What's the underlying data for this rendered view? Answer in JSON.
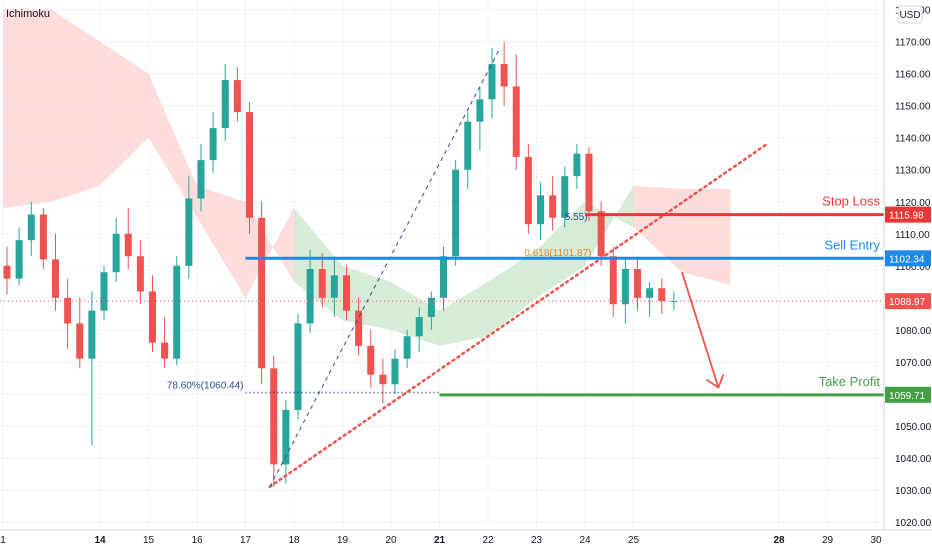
{
  "indicator_label": "Ichimoku",
  "currency": "USD",
  "colors": {
    "bull": "#26a69a",
    "bear": "#ef5350",
    "cloud_bear": "#fbd2d0",
    "cloud_bull": "#c8e6c9",
    "stop_loss": "#e53935",
    "sell_entry": "#1e88e5",
    "take_profit": "#43a047",
    "current_price": "#ef5350",
    "fib_line": "#2e4a8a"
  },
  "levels": [
    {
      "name": "Stop Loss",
      "price": 1115.98,
      "badge": "1115.98",
      "color": "#e53935",
      "x_from": "2020-11-24",
      "x_to": "2020-11-30"
    },
    {
      "name": "Sell Entry",
      "price": 1102.34,
      "badge": "1102.34",
      "color": "#1e88e5",
      "x_from": "2020-11-17",
      "x_to": "2020-11-30"
    },
    {
      "name": "Take Profit",
      "price": 1059.71,
      "badge": "1059.71",
      "color": "#43a047",
      "x_from": "2020-11-21",
      "x_to": "2020-11-30"
    }
  ],
  "current_price": {
    "price": 1088.97,
    "badge": "1088.97"
  },
  "annotations": {
    "fib_786": {
      "text": "78.60%(1060.44)",
      "price": 1060.44
    },
    "fib_618": {
      "text": "0.618(1101.87)",
      "price": 1101.87
    },
    "fib_partial": {
      "text": "5.55)",
      "price": 1115.55
    }
  },
  "chart_data": {
    "type": "candlestick",
    "instrument_currency": "USD",
    "x_axis": {
      "type": "date",
      "ticks": [
        {
          "label": "1",
          "date": "2020-11-12"
        },
        {
          "label": "14",
          "date": "2020-11-14"
        },
        {
          "label": "15",
          "date": "2020-11-15"
        },
        {
          "label": "16",
          "date": "2020-11-16"
        },
        {
          "label": "17",
          "date": "2020-11-17"
        },
        {
          "label": "18",
          "date": "2020-11-18"
        },
        {
          "label": "19",
          "date": "2020-11-19"
        },
        {
          "label": "20",
          "date": "2020-11-20"
        },
        {
          "label": "21",
          "date": "2020-11-21"
        },
        {
          "label": "22",
          "date": "2020-11-22"
        },
        {
          "label": "23",
          "date": "2020-11-23"
        },
        {
          "label": "24",
          "date": "2020-11-24"
        },
        {
          "label": "25",
          "date": "2020-11-25"
        },
        {
          "label": "28",
          "date": "2020-11-28"
        },
        {
          "label": "29",
          "date": "2020-11-29"
        },
        {
          "label": "30",
          "date": "2020-11-30"
        }
      ],
      "bold_ticks": [
        "14",
        "21",
        "28"
      ],
      "range": [
        "2020-11-12",
        "2020-11-30"
      ]
    },
    "y_axis": {
      "ticks": [
        "1020.00",
        "1030.00",
        "1040.00",
        "1050.00",
        "1060.00",
        "1070.00",
        "1080.00",
        "1090.00",
        "1100.00",
        "1110.00",
        "1120.00",
        "1130.00",
        "1140.00",
        "1150.00",
        "1160.00",
        "1170.00",
        "1180.00"
      ],
      "range": [
        1017.5,
        1183
      ]
    },
    "series": [
      {
        "kind": "ohlc",
        "points": [
          [
            "2020-11-12 00:00",
            1100,
            1106,
            1091,
            1096
          ],
          [
            "2020-11-12 06:00",
            1096,
            1112,
            1094,
            1108
          ],
          [
            "2020-11-12 12:00",
            1108,
            1120,
            1103,
            1116
          ],
          [
            "2020-11-12 18:00",
            1116,
            1118,
            1099,
            1102
          ],
          [
            "2020-11-13 00:00",
            1102,
            1110,
            1086,
            1090
          ],
          [
            "2020-11-13 06:00",
            1090,
            1096,
            1074,
            1082
          ],
          [
            "2020-11-13 12:00",
            1082,
            1090,
            1068,
            1071
          ],
          [
            "2020-11-13 18:00",
            1071,
            1092,
            1044,
            1086
          ],
          [
            "2020-11-14 00:00",
            1086,
            1100,
            1083,
            1098
          ],
          [
            "2020-11-14 06:00",
            1098,
            1115,
            1095,
            1110
          ],
          [
            "2020-11-14 12:00",
            1110,
            1118,
            1099,
            1103
          ],
          [
            "2020-11-14 18:00",
            1103,
            1108,
            1088,
            1092
          ],
          [
            "2020-11-15 00:00",
            1092,
            1097,
            1073,
            1076
          ],
          [
            "2020-11-15 06:00",
            1076,
            1084,
            1068,
            1071
          ],
          [
            "2020-11-15 12:00",
            1071,
            1103,
            1069,
            1100
          ],
          [
            "2020-11-15 18:00",
            1100,
            1128,
            1096,
            1121
          ],
          [
            "2020-11-16 00:00",
            1121,
            1138,
            1117,
            1133
          ],
          [
            "2020-11-16 06:00",
            1133,
            1148,
            1129,
            1143
          ],
          [
            "2020-11-16 12:00",
            1143,
            1163,
            1139,
            1158
          ],
          [
            "2020-11-16 18:00",
            1158,
            1162,
            1145,
            1148
          ],
          [
            "2020-11-17 00:00",
            1148,
            1151,
            1110,
            1115
          ],
          [
            "2020-11-17 06:00",
            1115,
            1120,
            1063,
            1068
          ],
          [
            "2020-11-17 12:00",
            1068,
            1072,
            1031,
            1038
          ],
          [
            "2020-11-17 18:00",
            1038,
            1058,
            1032,
            1055
          ],
          [
            "2020-11-18 00:00",
            1055,
            1085,
            1052,
            1082
          ],
          [
            "2020-11-18 06:00",
            1082,
            1105,
            1079,
            1099
          ],
          [
            "2020-11-18 12:00",
            1099,
            1104,
            1087,
            1090
          ],
          [
            "2020-11-18 18:00",
            1090,
            1103,
            1084,
            1097
          ],
          [
            "2020-11-19 00:00",
            1097,
            1100,
            1083,
            1086
          ],
          [
            "2020-11-19 06:00",
            1086,
            1090,
            1072,
            1075
          ],
          [
            "2020-11-19 12:00",
            1075,
            1080,
            1062,
            1066
          ],
          [
            "2020-11-19 18:00",
            1066,
            1071,
            1057,
            1063
          ],
          [
            "2020-11-20 00:00",
            1063,
            1074,
            1060,
            1071
          ],
          [
            "2020-11-20 06:00",
            1071,
            1080,
            1068,
            1078
          ],
          [
            "2020-11-20 12:00",
            1078,
            1087,
            1073,
            1084
          ],
          [
            "2020-11-20 18:00",
            1084,
            1092,
            1080,
            1090
          ],
          [
            "2020-11-21 00:00",
            1090,
            1106,
            1086,
            1103
          ],
          [
            "2020-11-21 06:00",
            1103,
            1133,
            1100,
            1130
          ],
          [
            "2020-11-21 12:00",
            1130,
            1148,
            1124,
            1145
          ],
          [
            "2020-11-21 18:00",
            1145,
            1156,
            1136,
            1152
          ],
          [
            "2020-11-22 00:00",
            1152,
            1168,
            1146,
            1163
          ],
          [
            "2020-11-22 06:00",
            1163,
            1170,
            1150,
            1156
          ],
          [
            "2020-11-22 12:00",
            1156,
            1166,
            1130,
            1134
          ],
          [
            "2020-11-22 18:00",
            1134,
            1138,
            1110,
            1113
          ],
          [
            "2020-11-23 00:00",
            1113,
            1126,
            1108,
            1122
          ],
          [
            "2020-11-23 06:00",
            1122,
            1128,
            1111,
            1115
          ],
          [
            "2020-11-23 12:00",
            1115,
            1131,
            1112,
            1128
          ],
          [
            "2020-11-23 18:00",
            1128,
            1138,
            1124,
            1135
          ],
          [
            "2020-11-24 00:00",
            1135,
            1137,
            1114,
            1117
          ],
          [
            "2020-11-24 06:00",
            1117,
            1120,
            1100,
            1103
          ],
          [
            "2020-11-24 12:00",
            1103,
            1106,
            1084,
            1088
          ],
          [
            "2020-11-24 18:00",
            1088,
            1102,
            1082,
            1099
          ],
          [
            "2020-11-25 00:00",
            1099,
            1102,
            1086,
            1090
          ],
          [
            "2020-11-25 06:00",
            1090,
            1095,
            1084,
            1093
          ],
          [
            "2020-11-25 12:00",
            1093,
            1096,
            1085,
            1089
          ],
          [
            "2020-11-25 18:00",
            1089,
            1092,
            1086,
            1089
          ]
        ]
      }
    ],
    "ichimoku_cloud": [
      {
        "date": "2020-11-12",
        "a": 1118,
        "b": 1180
      },
      {
        "date": "2020-11-13",
        "a": 1120,
        "b": 1180
      },
      {
        "date": "2020-11-14",
        "a": 1125,
        "b": 1170
      },
      {
        "date": "2020-11-15",
        "a": 1140,
        "b": 1160
      },
      {
        "date": "2020-11-16",
        "a": 1115,
        "b": 1125
      },
      {
        "date": "2020-11-17",
        "a": 1090,
        "b": 1120
      },
      {
        "date": "2020-11-18",
        "a": 1118,
        "b": 1095
      },
      {
        "date": "2020-11-19",
        "a": 1100,
        "b": 1083
      },
      {
        "date": "2020-11-20",
        "a": 1095,
        "b": 1080
      },
      {
        "date": "2020-11-21",
        "a": 1086,
        "b": 1075
      },
      {
        "date": "2020-11-22",
        "a": 1095,
        "b": 1078
      },
      {
        "date": "2020-11-23",
        "a": 1105,
        "b": 1090
      },
      {
        "date": "2020-11-24",
        "a": 1120,
        "b": 1100
      },
      {
        "date": "2020-11-25",
        "a": 1112,
        "b": 1125
      },
      {
        "date": "2020-11-26",
        "a": 1098,
        "b": 1124
      },
      {
        "date": "2020-11-27",
        "a": 1094,
        "b": 1124
      }
    ],
    "trendline_support": {
      "from": {
        "date": "2020-11-17 12:00",
        "price": 1031
      },
      "to": {
        "date": "2020-11-27 18:00",
        "price": 1138
      }
    },
    "fib_retracement_line": {
      "from": {
        "date": "2020-11-17 12:00",
        "price": 1031
      },
      "to": {
        "date": "2020-11-22 06:00",
        "price": 1168
      }
    },
    "projection_arrow": {
      "from": {
        "date": "2020-11-26 00:00",
        "price": 1098
      },
      "to": {
        "date": "2020-11-26 18:00",
        "price": 1062
      }
    }
  }
}
